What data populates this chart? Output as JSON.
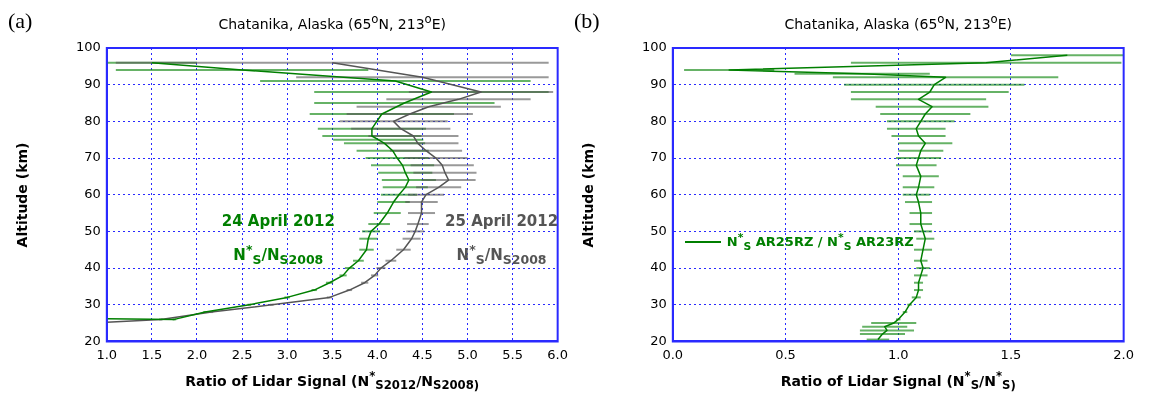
{
  "chart_data": [
    {
      "type": "line",
      "title": "Chatanika, Alaska (65$^{o}$N, 213$^{o}$E)",
      "xlabel": "Ratio of Lidar Signal (N$^{*}$$_{S2012}$/N$_{S2008)}$",
      "ylabel": "Altitude (km)",
      "xlim": [
        1,
        6
      ],
      "xticks": [
        {
          "value": 1,
          "label": "1.0"
        },
        {
          "value": 1.5,
          "label": "1.5"
        },
        {
          "value": 2,
          "label": "2.0"
        },
        {
          "value": 2.5,
          "label": "2.5"
        },
        {
          "value": 3,
          "label": "3.0"
        },
        {
          "value": 3.5,
          "label": "3.5"
        },
        {
          "value": 4,
          "label": "4.0"
        },
        {
          "value": 4.5,
          "label": "4.5"
        },
        {
          "value": 5,
          "label": "5.0"
        },
        {
          "value": 5.5,
          "label": "5.5"
        },
        {
          "value": 6,
          "label": "6.0"
        }
      ],
      "ylim": [
        20,
        100
      ],
      "yticks": [
        20,
        30,
        40,
        50,
        60,
        70,
        80,
        90,
        100
      ],
      "grid": true,
      "marker": "none",
      "legend": false,
      "annotations": [
        "(a)",
        "N$^{*}$$_{S}$/N$_{S2008}$",
        "N$^{*}$$_{S}$/N$_{S2008}$"
      ],
      "series": [
        {
          "name": "24 April 2012",
          "color": "#007f00",
          "x": [
            1.0,
            1.75,
            2.09,
            2.58,
            3.0,
            3.3,
            3.47,
            3.62,
            3.69,
            3.79,
            3.88,
            3.9,
            3.93,
            4.02,
            4.11,
            4.18,
            4.24,
            4.31,
            4.35,
            4.31,
            4.28,
            4.22,
            4.17,
            4.08,
            4.01,
            3.94,
            3.94,
            4.05,
            4.3,
            4.6,
            4.2,
            2.5,
            1.5
          ],
          "values": [
            26.2,
            26,
            28,
            30,
            32,
            34,
            36,
            38,
            40,
            42,
            45,
            48,
            50,
            52,
            55,
            58,
            60,
            62,
            64,
            66,
            68,
            70,
            72,
            74,
            75,
            76,
            78,
            82,
            85,
            88,
            91,
            94,
            96
          ],
          "xerrors": [
            null,
            0.02,
            0.02,
            0.02,
            0.03,
            0.03,
            0.04,
            0.04,
            0.05,
            0.06,
            0.08,
            0.1,
            0.1,
            0.12,
            0.15,
            0.18,
            0.2,
            0.25,
            0.3,
            0.3,
            0.35,
            0.35,
            0.4,
            0.45,
            0.5,
            0.55,
            0.6,
            0.8,
            1.0,
            1.3,
            1.5,
            1.4,
            0.5
          ]
        },
        {
          "name": "25 April 2012",
          "color": "#555555",
          "x": [
            1.0,
            1.6,
            2.16,
            2.83,
            3.47,
            3.69,
            3.86,
            3.97,
            4.04,
            4.15,
            4.29,
            4.38,
            4.42,
            4.45,
            4.49,
            4.49,
            4.54,
            4.68,
            4.79,
            4.75,
            4.72,
            4.65,
            4.54,
            4.45,
            4.4,
            4.26,
            4.18,
            4.36,
            4.57,
            4.9,
            5.15,
            4.5,
            3.5
          ],
          "values": [
            25.2,
            26,
            28,
            30,
            32,
            34,
            36,
            38,
            40,
            42,
            45,
            48,
            50,
            52,
            55,
            58,
            60,
            62,
            64,
            66,
            68,
            70,
            72,
            74,
            76,
            78,
            80,
            82,
            84,
            86,
            88,
            92,
            96
          ],
          "xerrors": [
            null,
            0.02,
            0.02,
            0.02,
            0.03,
            0.03,
            0.04,
            0.04,
            0.05,
            0.06,
            0.08,
            0.1,
            0.1,
            0.12,
            0.15,
            0.18,
            0.2,
            0.25,
            0.3,
            0.35,
            0.35,
            0.35,
            0.4,
            0.45,
            0.5,
            0.55,
            0.6,
            0.7,
            0.8,
            0.8,
            0.8,
            1.4,
            2.4
          ]
        }
      ]
    },
    {
      "type": "line",
      "title": "Chatanika, Alaska (65$^{o}$N, 213$^{o}$E)",
      "xlabel": "Ratio of Lidar Signal (N$^{*}$$_{S}$/N$^{*}$$_{S)}$",
      "ylabel": "Altitude (km)",
      "xlim": [
        0,
        2
      ],
      "xticks": [
        {
          "value": 0,
          "label": "0.0"
        },
        {
          "value": 0.5,
          "label": "0.5"
        },
        {
          "value": 1,
          "label": "1.0"
        },
        {
          "value": 1.5,
          "label": "1.5"
        },
        {
          "value": 2,
          "label": "2.0"
        }
      ],
      "ylim": [
        20,
        100
      ],
      "yticks": [
        20,
        30,
        40,
        50,
        60,
        70,
        80,
        90,
        100
      ],
      "grid": true,
      "marker": "none",
      "legend": "bottom left",
      "annotations": [
        "(b)"
      ],
      "series": [
        {
          "name": "N$^{*}$$_{S}$ AR25RZ / N$^{*}$$_{S}$ AR23RZ",
          "color": "#007f00",
          "x": [
            0.91,
            0.93,
            0.95,
            0.94,
            0.98,
            1.0,
            1.03,
            1.05,
            1.08,
            1.09,
            1.09,
            1.1,
            1.11,
            1.1,
            1.11,
            1.12,
            1.11,
            1.1,
            1.1,
            1.09,
            1.08,
            1.09,
            1.1,
            1.08,
            1.09,
            1.1,
            1.12,
            1.09,
            1.08,
            1.1,
            1.12,
            1.15,
            1.09,
            1.14,
            1.16,
            1.21,
            0.84,
            0.25,
            1.39,
            1.75
          ],
          "values": [
            20.5,
            22,
            23,
            24,
            25,
            26,
            28,
            30,
            32,
            34,
            36,
            38,
            40,
            42,
            45,
            48,
            50,
            52,
            55,
            58,
            60,
            62,
            65,
            68,
            70,
            72,
            74,
            76,
            78,
            80,
            82,
            84,
            86,
            88,
            90,
            92,
            93,
            94,
            96,
            98
          ],
          "xerrors": [
            0.05,
            0.1,
            0.12,
            0.1,
            0.1,
            0.01,
            0.01,
            0.01,
            0.02,
            0.02,
            0.02,
            0.03,
            0.03,
            0.03,
            0.04,
            0.04,
            0.04,
            0.05,
            0.05,
            0.06,
            0.06,
            0.07,
            0.08,
            0.09,
            0.1,
            0.1,
            0.12,
            0.12,
            0.13,
            0.15,
            0.2,
            0.25,
            0.3,
            0.35,
            0.4,
            0.5,
            0.3,
            0.2,
            0.6,
            0.25
          ]
        }
      ]
    }
  ]
}
